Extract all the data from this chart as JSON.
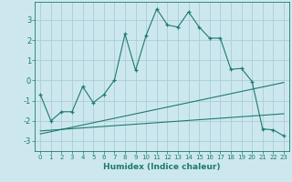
{
  "xlabel": "Humidex (Indice chaleur)",
  "bg_color": "#cce8ee",
  "grid_color": "#aacdd8",
  "line_color": "#1e7a6e",
  "xlim": [
    -0.5,
    23.5
  ],
  "ylim": [
    -3.5,
    3.9
  ],
  "yticks": [
    -3,
    -2,
    -1,
    0,
    1,
    2,
    3
  ],
  "xticks": [
    0,
    1,
    2,
    3,
    4,
    5,
    6,
    7,
    8,
    9,
    10,
    11,
    12,
    13,
    14,
    15,
    16,
    17,
    18,
    19,
    20,
    21,
    22,
    23
  ],
  "curve1_x": [
    0,
    1,
    2,
    3,
    4,
    5,
    6,
    7,
    8,
    9,
    10,
    11,
    12,
    13,
    14,
    15,
    16,
    17,
    18,
    19,
    20,
    21,
    22,
    23
  ],
  "curve1_y": [
    -0.7,
    -2.0,
    -1.55,
    -1.55,
    -0.3,
    -1.1,
    -0.7,
    0.02,
    2.3,
    0.5,
    2.25,
    3.55,
    2.75,
    2.65,
    3.4,
    2.65,
    2.1,
    2.1,
    0.55,
    0.6,
    -0.05,
    -2.4,
    -2.45,
    -2.75
  ],
  "line2_x": [
    0,
    23
  ],
  "line2_y": [
    -2.5,
    -1.65
  ],
  "line3_x": [
    0,
    23
  ],
  "line3_y": [
    -2.65,
    -0.1
  ]
}
